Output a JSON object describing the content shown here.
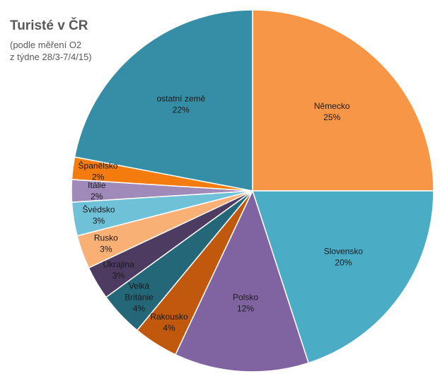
{
  "chart_data": {
    "type": "pie",
    "title": "Turisté v ČR",
    "subtitle_lines": [
      "(podle měření O2",
      "z týdne 28/3-7/4/15)"
    ],
    "slices": [
      {
        "name": "Německo",
        "value": 25,
        "label": "25%",
        "color": "#F79646"
      },
      {
        "name": "Slovensko",
        "value": 20,
        "label": "20%",
        "color": "#4BACC6"
      },
      {
        "name": "Polsko",
        "value": 12,
        "label": "12%",
        "color": "#8064A2"
      },
      {
        "name": "Rakousko",
        "value": 4,
        "label": "4%",
        "color": "#C0580E"
      },
      {
        "name": "Velká Británie",
        "label_lines": [
          "Velká",
          "Británie"
        ],
        "value": 4,
        "label": "4%",
        "color": "#246779"
      },
      {
        "name": "Ukrajina",
        "value": 3,
        "label": "3%",
        "color": "#4D3B62"
      },
      {
        "name": "Rusko",
        "value": 3,
        "label": "3%",
        "color": "#F9B074"
      },
      {
        "name": "Švédsko",
        "value": 3,
        "label": "3%",
        "color": "#6EC1D7"
      },
      {
        "name": "Itálie",
        "value": 2,
        "label": "2%",
        "color": "#9F8AB9"
      },
      {
        "name": "Španělsko",
        "value": 2,
        "label": "2%",
        "color": "#F47B0E"
      },
      {
        "name": "ostatní země",
        "value": 22,
        "label": "22%",
        "color": "#368EA6"
      }
    ],
    "start_angle_deg": 0,
    "direction": "clockwise",
    "legend": "none"
  }
}
